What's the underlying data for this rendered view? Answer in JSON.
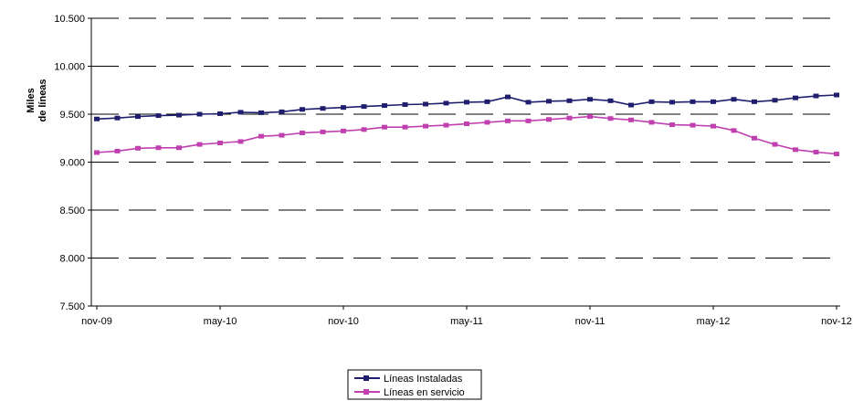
{
  "chart_data": {
    "type": "line",
    "title": "",
    "xlabel": "",
    "ylabel_lines": [
      "Miles",
      "de líneas"
    ],
    "x_ticks": [
      "nov-09",
      "may-10",
      "nov-10",
      "may-11",
      "nov-11",
      "may-12",
      "nov-12"
    ],
    "y_ticks": [
      "7.500",
      "8.000",
      "8.500",
      "9.000",
      "9.500",
      "10.000",
      "10.500"
    ],
    "ylim": [
      7500,
      10500
    ],
    "grid": "horizontal dashed",
    "legend_position": "bottom-center",
    "x": [
      "nov-09",
      "dic-09",
      "ene-10",
      "feb-10",
      "mar-10",
      "abr-10",
      "may-10",
      "jun-10",
      "jul-10",
      "ago-10",
      "sep-10",
      "oct-10",
      "nov-10",
      "dic-10",
      "ene-11",
      "feb-11",
      "mar-11",
      "abr-11",
      "may-11",
      "jun-11",
      "jul-11",
      "ago-11",
      "sep-11",
      "oct-11",
      "nov-11",
      "dic-11",
      "ene-12",
      "feb-12",
      "mar-12",
      "abr-12",
      "may-12",
      "jun-12",
      "jul-12",
      "ago-12",
      "sep-12",
      "oct-12",
      "nov-12"
    ],
    "series": [
      {
        "name": "Líneas Instaladas",
        "color": "#1f1f6e",
        "values": [
          9450,
          9460,
          9475,
          9485,
          9490,
          9500,
          9505,
          9520,
          9515,
          9525,
          9550,
          9560,
          9570,
          9580,
          9590,
          9600,
          9605,
          9615,
          9625,
          9630,
          9680,
          9625,
          9635,
          9640,
          9655,
          9640,
          9595,
          9630,
          9625,
          9630,
          9630,
          9655,
          9630,
          9645,
          9670,
          9690,
          9700
        ]
      },
      {
        "name": "Líneas en servicio",
        "color": "#c040b0",
        "values": [
          9100,
          9115,
          9145,
          9150,
          9150,
          9185,
          9200,
          9215,
          9270,
          9280,
          9305,
          9315,
          9325,
          9340,
          9365,
          9365,
          9375,
          9385,
          9400,
          9415,
          9430,
          9430,
          9445,
          9460,
          9475,
          9455,
          9440,
          9415,
          9390,
          9385,
          9375,
          9330,
          9250,
          9185,
          9130,
          9105,
          9085
        ]
      }
    ]
  }
}
